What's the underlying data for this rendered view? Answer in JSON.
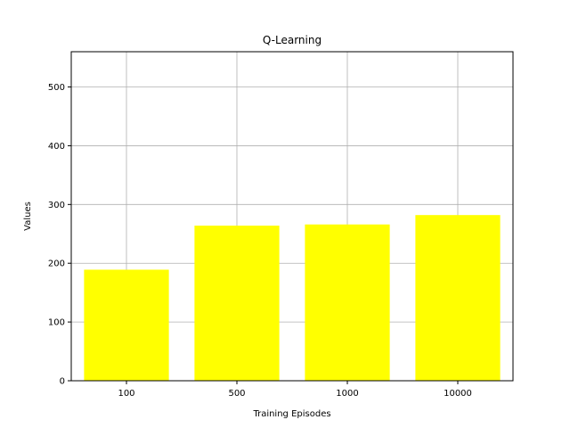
{
  "chart_data": {
    "type": "bar",
    "title": "Q-Learning",
    "xlabel": "Training Episodes",
    "ylabel": "Values",
    "categories": [
      "100",
      "500",
      "1000",
      "10000"
    ],
    "values": [
      189,
      264,
      266,
      282
    ],
    "ylim": [
      0,
      560
    ],
    "yticks": [
      0,
      100,
      200,
      300,
      400,
      500
    ],
    "grid": true,
    "bar_color": "#ffff00",
    "grid_color": "#b0b0b0"
  }
}
